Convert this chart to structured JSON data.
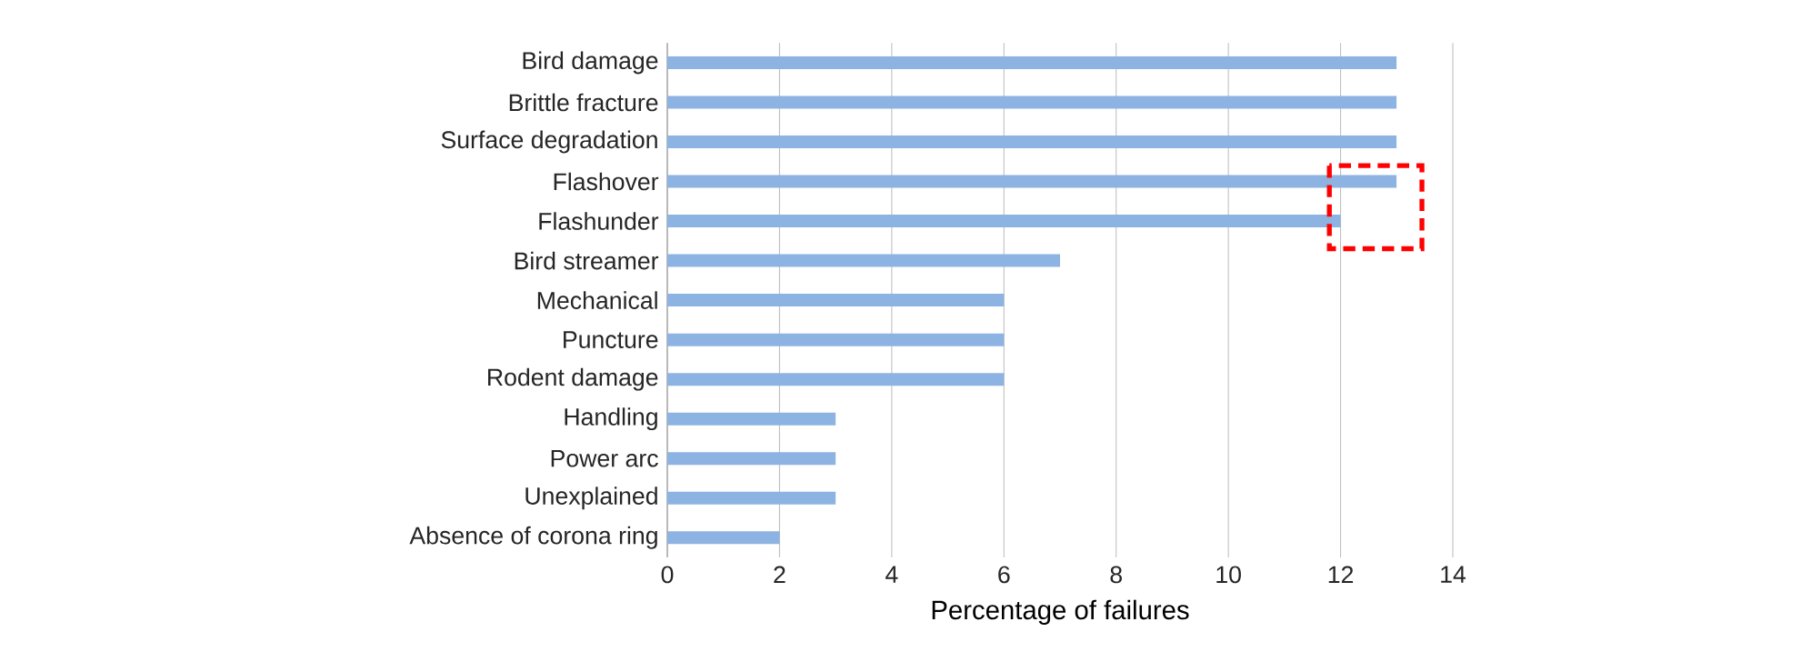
{
  "chart_data": {
    "type": "bar",
    "orientation": "horizontal",
    "xlabel": "Percentage of failures",
    "categories": [
      "Bird damage",
      "Brittle fracture",
      "Surface degradation",
      "Flashover",
      "Flashunder",
      "Bird streamer",
      "Mechanical",
      "Puncture",
      "Rodent damage",
      "Handling",
      "Power arc",
      "Unexplained",
      "Absence of corona ring"
    ],
    "values": [
      13,
      13,
      13,
      13,
      12,
      7,
      6,
      6,
      6,
      3,
      3,
      3,
      2
    ],
    "color": "#8db3e2",
    "xlim": [
      0,
      14
    ],
    "xticks": [
      0,
      2,
      4,
      6,
      8,
      10,
      12,
      14
    ],
    "grid": "x"
  }
}
